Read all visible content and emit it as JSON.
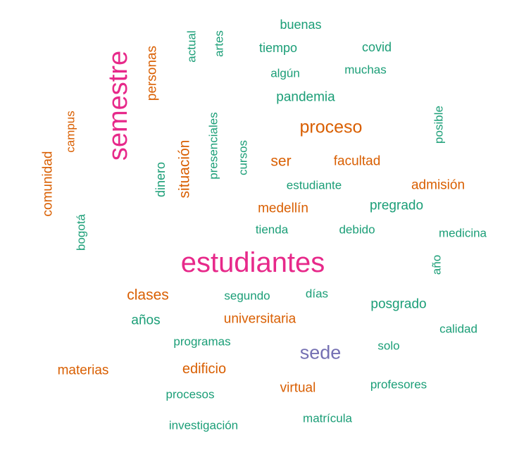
{
  "colors": {
    "pink": "#e7298a",
    "orange": "#d95f02",
    "green": "#1b9e77",
    "purple": "#7570b3"
  },
  "words": [
    {
      "text": "estudiantes",
      "color": "pink"
    },
    {
      "text": "semestre",
      "color": "pink"
    },
    {
      "text": "sede",
      "color": "purple"
    },
    {
      "text": "proceso",
      "color": "orange"
    },
    {
      "text": "clases",
      "color": "orange"
    },
    {
      "text": "universitaria",
      "color": "orange"
    },
    {
      "text": "edificio",
      "color": "orange"
    },
    {
      "text": "virtual",
      "color": "orange"
    },
    {
      "text": "materias",
      "color": "orange"
    },
    {
      "text": "ser",
      "color": "orange"
    },
    {
      "text": "facultad",
      "color": "orange"
    },
    {
      "text": "admisión",
      "color": "orange"
    },
    {
      "text": "medellín",
      "color": "orange"
    },
    {
      "text": "personas",
      "color": "orange"
    },
    {
      "text": "situación",
      "color": "orange"
    },
    {
      "text": "comunidad",
      "color": "orange"
    },
    {
      "text": "campus",
      "color": "orange"
    },
    {
      "text": "buenas",
      "color": "green"
    },
    {
      "text": "tiempo",
      "color": "green"
    },
    {
      "text": "covid",
      "color": "green"
    },
    {
      "text": "algún",
      "color": "green"
    },
    {
      "text": "muchas",
      "color": "green"
    },
    {
      "text": "pandemia",
      "color": "green"
    },
    {
      "text": "estudiante",
      "color": "green"
    },
    {
      "text": "pregrado",
      "color": "green"
    },
    {
      "text": "tienda",
      "color": "green"
    },
    {
      "text": "debido",
      "color": "green"
    },
    {
      "text": "medicina",
      "color": "green"
    },
    {
      "text": "segundo",
      "color": "green"
    },
    {
      "text": "días",
      "color": "green"
    },
    {
      "text": "posgrado",
      "color": "green"
    },
    {
      "text": "años",
      "color": "green"
    },
    {
      "text": "calidad",
      "color": "green"
    },
    {
      "text": "programas",
      "color": "green"
    },
    {
      "text": "solo",
      "color": "green"
    },
    {
      "text": "profesores",
      "color": "green"
    },
    {
      "text": "procesos",
      "color": "green"
    },
    {
      "text": "matrícula",
      "color": "green"
    },
    {
      "text": "investigación",
      "color": "green"
    },
    {
      "text": "actual",
      "color": "green"
    },
    {
      "text": "artes",
      "color": "green"
    },
    {
      "text": "presenciales",
      "color": "green"
    },
    {
      "text": "cursos",
      "color": "green"
    },
    {
      "text": "dinero",
      "color": "green"
    },
    {
      "text": "bogotá",
      "color": "green"
    },
    {
      "text": "posible",
      "color": "green"
    },
    {
      "text": "año",
      "color": "green"
    }
  ]
}
